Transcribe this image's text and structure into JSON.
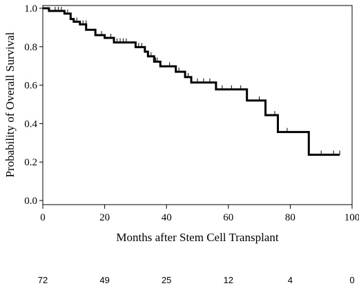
{
  "chart_data": {
    "type": "line",
    "title": "",
    "xlabel": "Months after Stem Cell Transplant",
    "ylabel": "Probability of Overall Survival",
    "xlim": [
      0,
      100
    ],
    "ylim": [
      0,
      1
    ],
    "x_ticks": [
      0,
      20,
      40,
      60,
      80,
      100
    ],
    "y_ticks": [
      0.0,
      0.2,
      0.4,
      0.6,
      0.8,
      1.0
    ],
    "x_tick_labels": [
      "0",
      "20",
      "40",
      "60",
      "80",
      "100"
    ],
    "y_tick_labels": [
      "0.0",
      "0.2",
      "0.4",
      "0.6",
      "0.8",
      "1.0"
    ],
    "grid": false,
    "legend": "none",
    "series": [
      {
        "step": "post",
        "x": [
          0,
          2,
          7,
          9,
          10,
          12,
          14,
          17,
          20,
          23,
          30,
          33,
          34,
          36,
          38,
          43,
          46,
          48,
          56,
          66,
          72,
          76,
          86,
          96
        ],
        "y": [
          1.0,
          0.986,
          0.972,
          0.944,
          0.93,
          0.916,
          0.888,
          0.86,
          0.846,
          0.822,
          0.798,
          0.774,
          0.75,
          0.722,
          0.698,
          0.67,
          0.642,
          0.614,
          0.578,
          0.52,
          0.444,
          0.356,
          0.238,
          0.238
        ]
      }
    ],
    "censored": [
      {
        "x": 4,
        "y": 0.986
      },
      {
        "x": 5,
        "y": 0.986
      },
      {
        "x": 6,
        "y": 0.986
      },
      {
        "x": 8,
        "y": 0.972
      },
      {
        "x": 11,
        "y": 0.93
      },
      {
        "x": 13,
        "y": 0.916
      },
      {
        "x": 14,
        "y": 0.916
      },
      {
        "x": 19,
        "y": 0.86
      },
      {
        "x": 22,
        "y": 0.846
      },
      {
        "x": 24,
        "y": 0.822
      },
      {
        "x": 25,
        "y": 0.822
      },
      {
        "x": 26,
        "y": 0.822
      },
      {
        "x": 27,
        "y": 0.822
      },
      {
        "x": 31,
        "y": 0.798
      },
      {
        "x": 32,
        "y": 0.798
      },
      {
        "x": 35,
        "y": 0.75
      },
      {
        "x": 36.5,
        "y": 0.722
      },
      {
        "x": 37,
        "y": 0.722
      },
      {
        "x": 41,
        "y": 0.698
      },
      {
        "x": 44,
        "y": 0.67
      },
      {
        "x": 47,
        "y": 0.642
      },
      {
        "x": 50,
        "y": 0.614
      },
      {
        "x": 52,
        "y": 0.614
      },
      {
        "x": 54,
        "y": 0.614
      },
      {
        "x": 58,
        "y": 0.578
      },
      {
        "x": 61,
        "y": 0.578
      },
      {
        "x": 64,
        "y": 0.578
      },
      {
        "x": 70,
        "y": 0.52
      },
      {
        "x": 75,
        "y": 0.444
      },
      {
        "x": 79,
        "y": 0.356
      },
      {
        "x": 90,
        "y": 0.238
      },
      {
        "x": 94,
        "y": 0.238
      },
      {
        "x": 96,
        "y": 0.238
      }
    ],
    "number_at_risk": {
      "x": [
        0,
        20,
        40,
        60,
        80,
        100
      ],
      "labels": [
        "72",
        "49",
        "25",
        "12",
        "4",
        "0"
      ]
    }
  }
}
